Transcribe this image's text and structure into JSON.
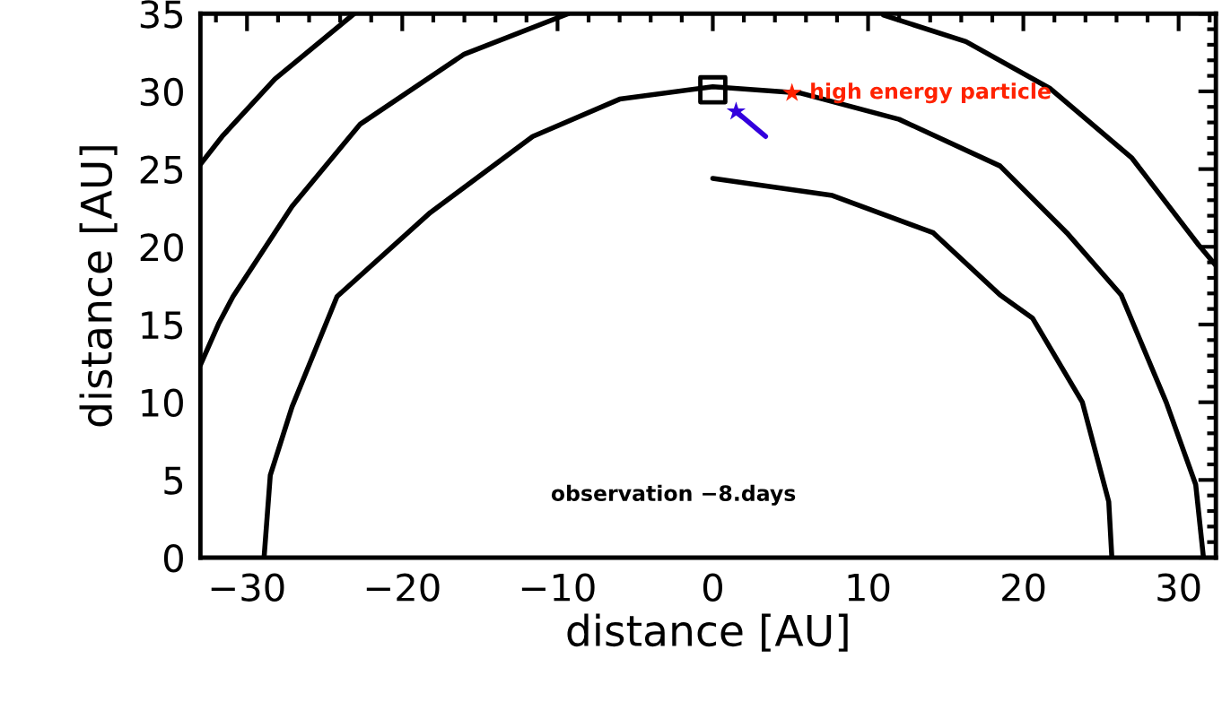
{
  "chart_data": {
    "type": "line",
    "xlabel": "distance [AU]",
    "ylabel": "distance [AU]",
    "xlim": [
      -33,
      32.4
    ],
    "ylim": [
      0,
      35
    ],
    "xticks": [
      {
        "value": -32,
        "label": null
      },
      -30,
      {
        "value": -28,
        "label": null
      },
      {
        "value": -26,
        "label": null
      },
      {
        "value": -24,
        "label": null
      },
      {
        "value": -22,
        "label": null
      },
      {
        "value": -20,
        "label": "−20"
      },
      {
        "value": -18,
        "label": null
      },
      {
        "value": -16,
        "label": null
      },
      {
        "value": -14,
        "label": null
      },
      {
        "value": -12,
        "label": null
      },
      {
        "value": -10,
        "label": "−10"
      },
      {
        "value": -8,
        "label": null
      },
      {
        "value": -6,
        "label": null
      },
      {
        "value": -4,
        "label": null
      },
      {
        "value": -2,
        "label": null
      },
      0,
      {
        "value": 2,
        "label": null
      },
      {
        "value": 4,
        "label": null
      },
      {
        "value": 6,
        "label": null
      },
      {
        "value": 8,
        "label": null
      },
      10,
      {
        "value": 12,
        "label": null
      },
      {
        "value": 14,
        "label": null
      },
      {
        "value": 16,
        "label": null
      },
      {
        "value": 18,
        "label": null
      },
      20,
      {
        "value": 22,
        "label": null
      },
      {
        "value": 24,
        "label": null
      },
      {
        "value": 26,
        "label": null
      },
      {
        "value": 28,
        "label": null
      },
      30,
      {
        "value": 32,
        "label": null
      }
    ],
    "yticks": [
      0,
      {
        "value": 1,
        "label": null
      },
      {
        "value": 2,
        "label": null
      },
      {
        "value": 3,
        "label": null
      },
      {
        "value": 4,
        "label": null
      },
      5,
      {
        "value": 6,
        "label": null
      },
      {
        "value": 7,
        "label": null
      },
      {
        "value": 8,
        "label": null
      },
      {
        "value": 9,
        "label": null
      },
      10,
      {
        "value": 11,
        "label": null
      },
      {
        "value": 12,
        "label": null
      },
      {
        "value": 13,
        "label": null
      },
      {
        "value": 14,
        "label": null
      },
      15,
      {
        "value": 16,
        "label": null
      },
      {
        "value": 17,
        "label": null
      },
      {
        "value": 18,
        "label": null
      },
      {
        "value": 19,
        "label": null
      },
      20,
      {
        "value": 21,
        "label": null
      },
      {
        "value": 22,
        "label": null
      },
      {
        "value": 23,
        "label": null
      },
      {
        "value": 24,
        "label": null
      },
      25,
      {
        "value": 26,
        "label": null
      },
      {
        "value": 27,
        "label": null
      },
      {
        "value": 28,
        "label": null
      },
      {
        "value": 29,
        "label": null
      },
      30,
      {
        "value": 31,
        "label": null
      },
      {
        "value": 32,
        "label": null
      },
      {
        "value": 33,
        "label": null
      },
      {
        "value": 34,
        "label": null
      },
      35
    ],
    "grid": false,
    "line_style": "solid",
    "series": [
      {
        "color": "#000000",
        "x": [
          -28.9,
          -28.5,
          -27.1,
          -24.2,
          -18.2,
          -11.6,
          -6.0,
          0,
          5.6,
          12.0,
          18.5,
          22.8,
          26.3,
          29.2,
          31.1,
          31.6
        ],
        "values": [
          0,
          5.3,
          9.7,
          16.8,
          22.2,
          27.1,
          29.5,
          30.3,
          29.9,
          28.2,
          25.2,
          20.9,
          16.9,
          10.0,
          4.7,
          0
        ]
      },
      {
        "color": "#000000",
        "x": [
          0,
          7.7,
          14.2,
          18.5,
          20.6,
          23.8,
          25.5,
          25.7
        ],
        "values": [
          24.4,
          23.3,
          20.9,
          16.9,
          15.4,
          10.0,
          3.6,
          0
        ]
      },
      {
        "color": "#000000",
        "x": [
          -33,
          -31.8,
          -30.9,
          -27.1,
          -22.7,
          -16.0,
          -9.3
        ],
        "values": [
          12.4,
          15.1,
          16.8,
          22.6,
          27.9,
          32.4,
          35
        ]
      },
      {
        "color": "#000000",
        "x": [
          11.0,
          16.3,
          21.7,
          27.0,
          31.3,
          32.4
        ],
        "values": [
          34.9,
          33.2,
          30.2,
          25.7,
          20.1,
          18.8
        ]
      },
      {
        "color": "#000000",
        "x": [
          -33,
          -31.6,
          -28.2,
          -23.1
        ],
        "values": [
          25.3,
          27.1,
          30.8,
          35
        ]
      },
      {
        "type": "scatter",
        "marker": "square",
        "color": "#000000",
        "x": [
          0
        ],
        "values": [
          30.1
        ]
      },
      {
        "color": "#3300dd",
        "x": [
          1.5,
          3.4
        ],
        "values": [
          28.7,
          27.1
        ]
      },
      {
        "type": "scatter",
        "marker": "star",
        "color": "#3300dd",
        "x": [
          1.5
        ],
        "values": [
          28.7
        ]
      },
      {
        "type": "scatter",
        "marker": "star",
        "color": "#ff2200",
        "x": [
          5.1
        ],
        "values": [
          29.9
        ]
      }
    ],
    "annotations": [
      {
        "text": "high energy particle",
        "x": 5.1,
        "y": 29.9
      },
      "observation −8.days"
    ]
  }
}
